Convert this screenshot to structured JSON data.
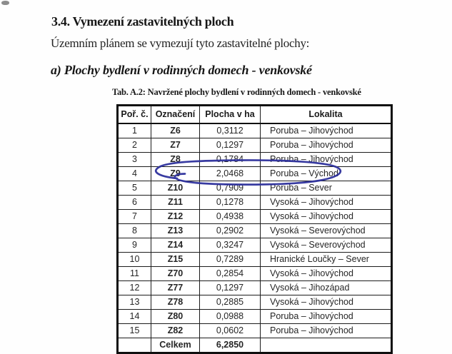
{
  "page": {
    "heading": "3.4. Vymezení zastavitelných ploch",
    "intro": "Územním plánem se vymezují tyto zastavitelné plochy:",
    "subheading": "a) Plochy bydlení v rodinných domech - venkovské",
    "table_caption": "Tab. A.2: Navržené plochy bydlení v rodinných domech - venkovské"
  },
  "table": {
    "headers": [
      "Poř. č.",
      "Označení",
      "Plocha v ha",
      "Lokalita"
    ],
    "rows": [
      [
        "1",
        "Z6",
        "0,3112",
        "Poruba – Jihovýchod"
      ],
      [
        "2",
        "Z7",
        "0,1297",
        "Poruba – Jihovýchod"
      ],
      [
        "3",
        "Z8",
        "0,1784",
        "Poruba – Jihovýchod"
      ],
      [
        "4",
        "Z9",
        "2,0468",
        "Poruba – Východ"
      ],
      [
        "5",
        "Z10",
        "0,7909",
        "Poruba – Sever"
      ],
      [
        "6",
        "Z11",
        "0,1278",
        "Vysoká – Jihovýchod"
      ],
      [
        "7",
        "Z12",
        "0,4938",
        "Vysoká – Jihovýchod"
      ],
      [
        "8",
        "Z13",
        "0,2902",
        "Vysoká – Severovýchod"
      ],
      [
        "9",
        "Z14",
        "0,3247",
        "Vysoká – Severovýchod"
      ],
      [
        "10",
        "Z15",
        "0,7289",
        "Hranické Loučky – Sever"
      ],
      [
        "11",
        "Z70",
        "0,2854",
        "Vysoká – Jihovýchod"
      ],
      [
        "12",
        "Z77",
        "0,1297",
        "Vysoká – Jihozápad"
      ],
      [
        "13",
        "Z78",
        "0,2885",
        "Vysoká – Jihovýchod"
      ],
      [
        "14",
        "Z80",
        "0,0988",
        "Poruba – Jihovýchod"
      ],
      [
        "15",
        "Z82",
        "0,0602",
        "Poruba – Jihovýchod"
      ]
    ],
    "total_label": "Celkem",
    "total_value": "6,2850"
  },
  "annotation": {
    "kind": "hand-drawn ellipse",
    "color": "#2d309c",
    "circled_row": "Z9"
  }
}
